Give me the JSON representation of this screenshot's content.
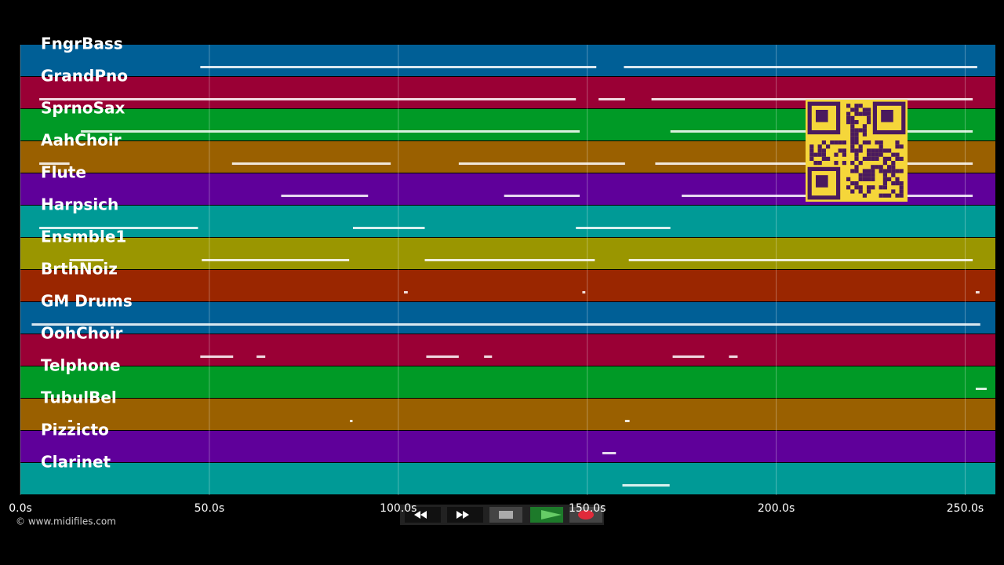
{
  "chart_data": {
    "type": "timeline",
    "xlim": [
      0,
      258
    ],
    "xticks": [
      {
        "value": 0,
        "label": "0.0s"
      },
      {
        "value": 50,
        "label": "50.0s"
      },
      {
        "value": 100,
        "label": "100.0s"
      },
      {
        "value": 150,
        "label": "150.0s"
      },
      {
        "value": 200,
        "label": "200.0s"
      },
      {
        "value": 250,
        "label": "250.0s"
      }
    ],
    "grid": true,
    "tracks": [
      {
        "name": "FngrBass",
        "color": "#005f96",
        "notes": [
          [
            47.6,
            152.4
          ],
          [
            159.7,
            253.2
          ]
        ]
      },
      {
        "name": "GrandPno",
        "color": "#9a0035",
        "notes": [
          [
            5,
            147
          ],
          [
            153,
            160
          ],
          [
            167,
            252
          ]
        ]
      },
      {
        "name": "SprnoSax",
        "color": "#009a26",
        "notes": [
          [
            16,
            148
          ],
          [
            172,
            252
          ]
        ]
      },
      {
        "name": "AahChoir",
        "color": "#9a6000",
        "notes": [
          [
            5,
            13
          ],
          [
            56,
            98
          ],
          [
            116,
            160
          ],
          [
            168,
            252
          ]
        ]
      },
      {
        "name": "Flute",
        "color": "#5f009a",
        "notes": [
          [
            69,
            92
          ],
          [
            128,
            148
          ],
          [
            175,
            252
          ]
        ]
      },
      {
        "name": "Harpsich",
        "color": "#009a96",
        "notes": [
          [
            5,
            47
          ],
          [
            88,
            107
          ],
          [
            147,
            172
          ]
        ]
      },
      {
        "name": "Ensmble1",
        "color": "#9a9600",
        "notes": [
          [
            13,
            22
          ],
          [
            48,
            87
          ],
          [
            107,
            152
          ],
          [
            161,
            252
          ]
        ]
      },
      {
        "name": "BrthNoiz",
        "color": "#9a2600",
        "notes": [
          [
            101.5,
            102.5
          ],
          [
            148.7,
            149.5
          ],
          [
            252.8,
            253.8
          ]
        ]
      },
      {
        "name": "GM Drums",
        "color": "#005f96",
        "notes": [
          [
            3,
            254
          ]
        ]
      },
      {
        "name": "OohChoir",
        "color": "#9a0035",
        "notes": [
          [
            47.6,
            56.3
          ],
          [
            62.5,
            64.8
          ],
          [
            107.4,
            116
          ],
          [
            122.7,
            124.8
          ],
          [
            172.6,
            181
          ],
          [
            187.5,
            189.8
          ]
        ]
      },
      {
        "name": "Telphone",
        "color": "#009a26",
        "notes": [
          [
            252.8,
            255.7
          ]
        ]
      },
      {
        "name": "TubulBel",
        "color": "#9a6000",
        "notes": [
          [
            12.7,
            13.7
          ],
          [
            87.2,
            87.9
          ],
          [
            160,
            161.2
          ]
        ]
      },
      {
        "name": "Pizzicto",
        "color": "#5f009a",
        "notes": [
          [
            154,
            157.6
          ]
        ]
      },
      {
        "name": "Clarinet",
        "color": "#009a96",
        "notes": [
          [
            159.3,
            171.8
          ]
        ]
      }
    ],
    "credit": "© www.midifiles.com"
  }
}
